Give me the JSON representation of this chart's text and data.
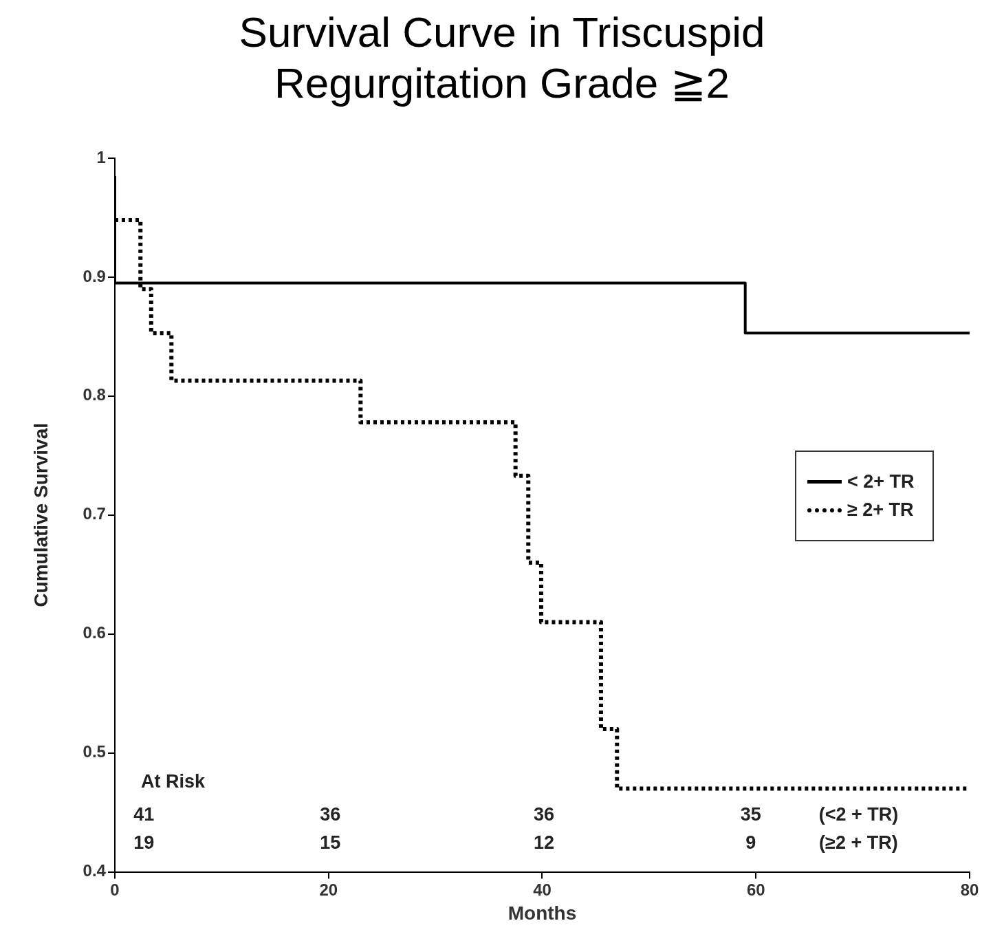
{
  "chart_data": {
    "type": "step",
    "title": "Survival Curve in Triscuspid Regurgitation Grade ≧2",
    "xlabel": "Months",
    "ylabel": "Cumulative Survival",
    "xlim": [
      0,
      80
    ],
    "xticks": [
      0,
      20,
      40,
      60,
      80
    ],
    "ylim": [
      0.4,
      1
    ],
    "yticks": [
      {
        "value": 0.4,
        "label": "0.4"
      },
      {
        "value": 0.5,
        "label": "0.5"
      },
      {
        "value": 0.6,
        "label": "0.6"
      },
      {
        "value": 0.7,
        "label": "0.7"
      },
      {
        "value": 0.8,
        "label": "0.8"
      },
      {
        "value": 0.9,
        "label": "0.9"
      },
      {
        "value": 1,
        "label": "1"
      }
    ],
    "legend": "right",
    "marker": "none",
    "series": [
      {
        "name": "< 2+ TR",
        "color": "#000000",
        "line_style": "solid",
        "x": [
          0,
          0,
          59,
          80
        ],
        "values": [
          0.985,
          0.895,
          0.853,
          0.853
        ]
      },
      {
        "name": "≥ 2+ TR",
        "color": "#000000",
        "line_style": "dotted",
        "x": [
          0,
          2.4,
          3.4,
          5.3,
          23,
          37.5,
          38.7,
          39.9,
          45.5,
          47,
          80
        ],
        "values": [
          0.948,
          0.89,
          0.853,
          0.813,
          0.778,
          0.733,
          0.66,
          0.61,
          0.52,
          0.47,
          0.47
        ]
      }
    ],
    "annotations": [
      "At Risk",
      "41",
      "36",
      "36",
      "35",
      "(<2 + TR)",
      "19",
      "15",
      "12",
      "9",
      "(≥2 + TR)"
    ]
  }
}
